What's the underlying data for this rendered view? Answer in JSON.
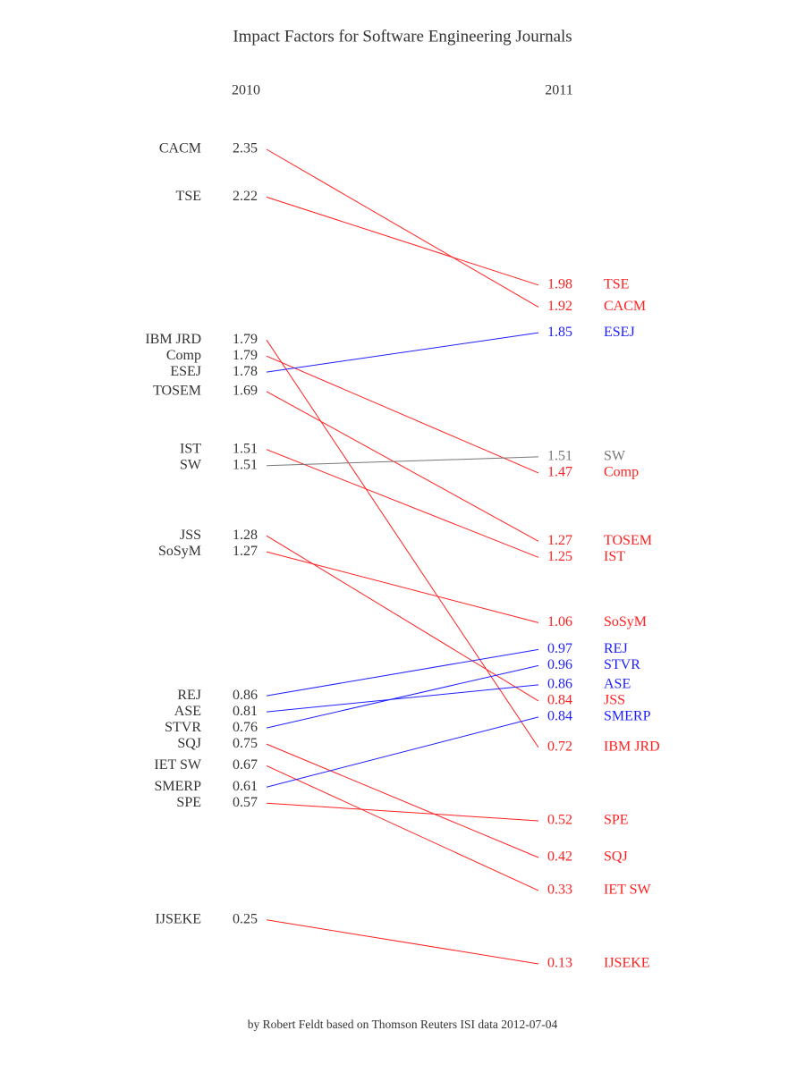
{
  "chart_data": {
    "type": "slope",
    "title": "Impact Factors for Software Engineering Journals",
    "caption": "by Robert Feldt based on Thomson Reuters ISI data 2012-07-04",
    "categories": [
      "CACM",
      "TSE",
      "IBM JRD",
      "Comp",
      "ESEJ",
      "TOSEM",
      "IST",
      "SW",
      "JSS",
      "SoSyM",
      "REJ",
      "ASE",
      "STVR",
      "SQJ",
      "IET SW",
      "SMERP",
      "SPE",
      "IJSEKE"
    ],
    "colors": [
      "#ff2020",
      "#ff2020",
      "#ff2020",
      "#ff2020",
      "#2020ff",
      "#ff2020",
      "#ff2020",
      "#777777",
      "#ff2020",
      "#ff2020",
      "#2020ff",
      "#2020ff",
      "#2020ff",
      "#ff2020",
      "#ff2020",
      "#2020ff",
      "#ff2020",
      "#ff2020"
    ],
    "series": [
      {
        "name": "2010",
        "values": [
          2.35,
          2.22,
          1.79,
          1.79,
          1.78,
          1.69,
          1.51,
          1.51,
          1.28,
          1.27,
          0.86,
          0.81,
          0.76,
          0.75,
          0.67,
          0.61,
          0.57,
          0.25
        ]
      },
      {
        "name": "2011",
        "values": [
          1.92,
          1.98,
          0.72,
          1.47,
          1.85,
          1.27,
          1.25,
          1.51,
          0.84,
          1.06,
          0.97,
          0.86,
          0.96,
          0.42,
          0.33,
          0.84,
          0.52,
          0.13
        ]
      }
    ]
  }
}
